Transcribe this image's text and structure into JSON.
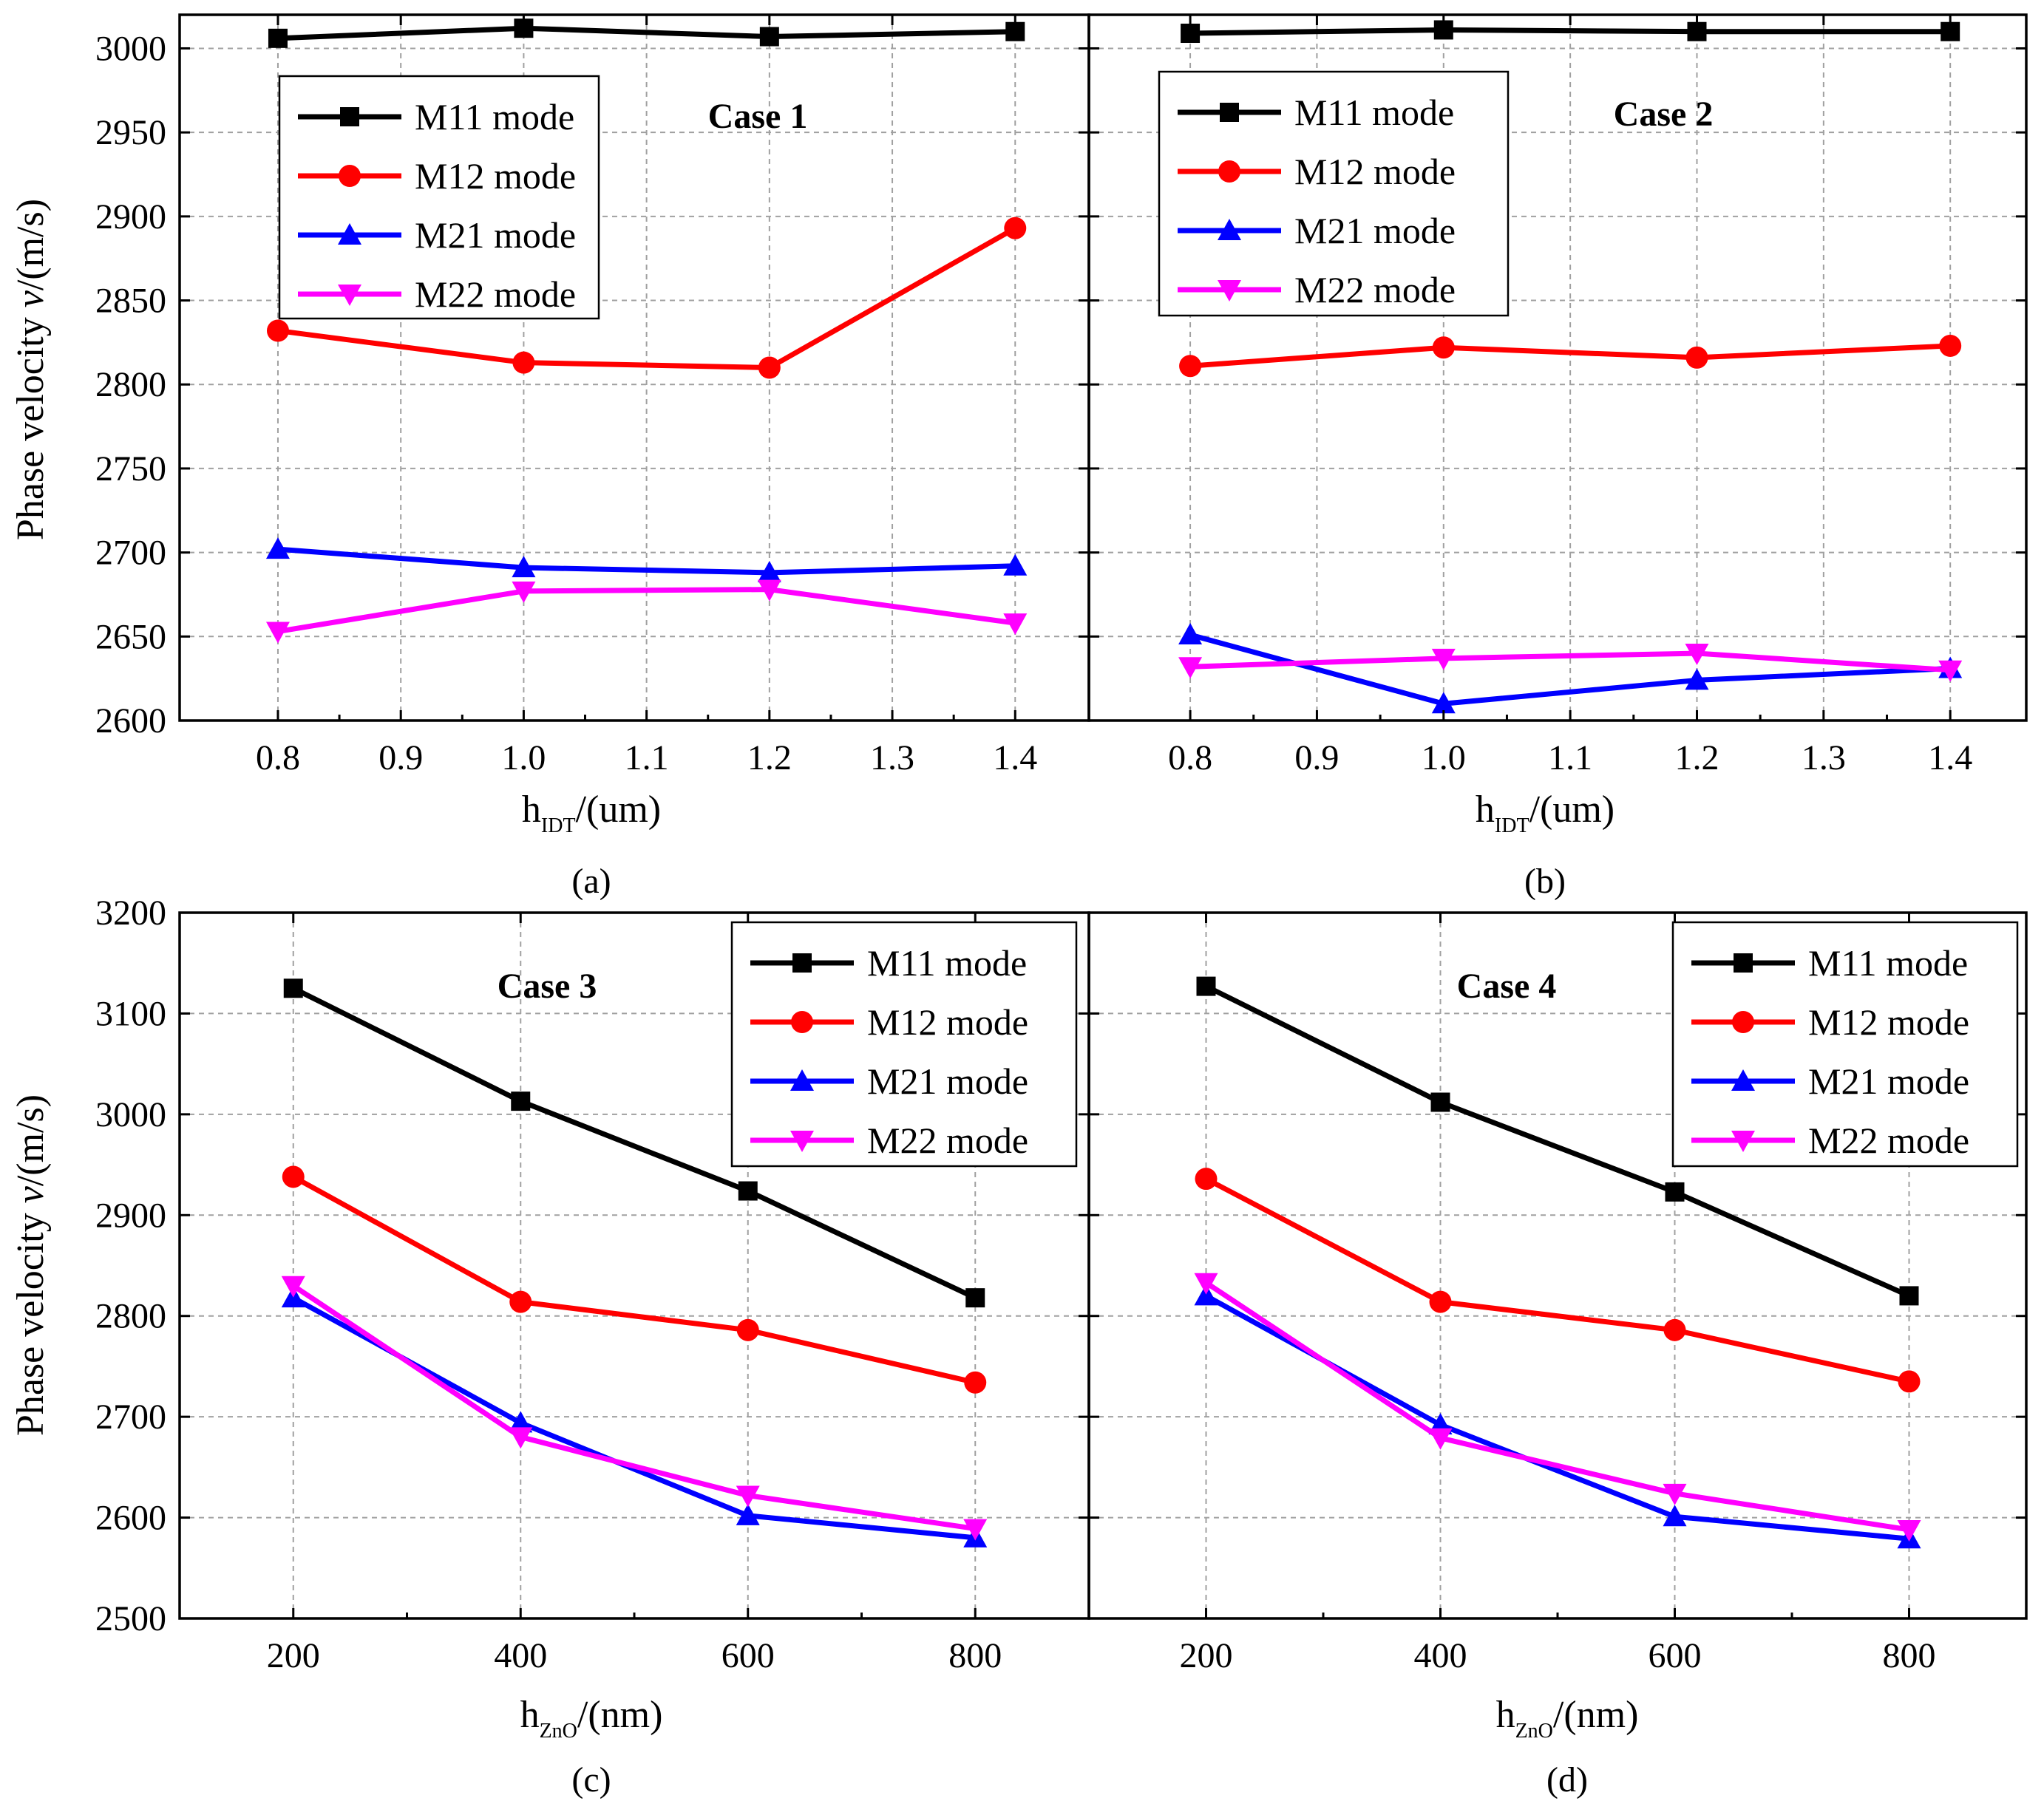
{
  "chart_data": [
    {
      "panel": "(a)",
      "type": "line",
      "case_label": "Case 1",
      "xlabel_main": "h",
      "xlabel_sub": "IDT",
      "xlabel_unit": "/(um)",
      "ylabel_pre": "Phase velocity ",
      "ylabel_var": "v",
      "ylabel_post": "/(m/s)",
      "x": [
        0.8,
        1.0,
        1.2,
        1.4
      ],
      "xlim": [
        0.72,
        1.46
      ],
      "ylim": [
        2600,
        3020
      ],
      "xticks": [
        "0.8",
        "0.9",
        "1.0",
        "1.1",
        "1.2",
        "1.3",
        "1.4"
      ],
      "yticks": [
        "2600",
        "2650",
        "2700",
        "2750",
        "2800",
        "2850",
        "2900",
        "2950",
        "3000"
      ],
      "grid": true,
      "legend_position": "top-left",
      "series": [
        {
          "name": "M11 mode",
          "color": "#000000",
          "marker": "square",
          "values": [
            3006,
            3012,
            3007,
            3010
          ]
        },
        {
          "name": "M12 mode",
          "color": "#ff0000",
          "marker": "circle",
          "values": [
            2832,
            2813,
            2810,
            2893
          ]
        },
        {
          "name": "M21 mode",
          "color": "#0000ff",
          "marker": "triangle-up",
          "values": [
            2702,
            2691,
            2688,
            2692
          ]
        },
        {
          "name": "M22 mode",
          "color": "#ff00ff",
          "marker": "triangle-down",
          "values": [
            2653,
            2677,
            2678,
            2658
          ]
        }
      ]
    },
    {
      "panel": "(b)",
      "type": "line",
      "case_label": "Case 2",
      "xlabel_main": "h",
      "xlabel_sub": "IDT",
      "xlabel_unit": "/(um)",
      "x": [
        0.8,
        1.0,
        1.2,
        1.4
      ],
      "xlim": [
        0.72,
        1.46
      ],
      "ylim": [
        2600,
        3020
      ],
      "xticks": [
        "0.8",
        "0.9",
        "1.0",
        "1.1",
        "1.2",
        "1.3",
        "1.4"
      ],
      "grid": true,
      "legend_position": "top-left",
      "series": [
        {
          "name": "M11 mode",
          "color": "#000000",
          "marker": "square",
          "values": [
            3009,
            3011,
            3010,
            3010
          ]
        },
        {
          "name": "M12 mode",
          "color": "#ff0000",
          "marker": "circle",
          "values": [
            2811,
            2822,
            2816,
            2823
          ]
        },
        {
          "name": "M21 mode",
          "color": "#0000ff",
          "marker": "triangle-up",
          "values": [
            2651,
            2610,
            2624,
            2631
          ]
        },
        {
          "name": "M22 mode",
          "color": "#ff00ff",
          "marker": "triangle-down",
          "values": [
            2632,
            2637,
            2640,
            2630
          ]
        }
      ]
    },
    {
      "panel": "(c)",
      "type": "line",
      "case_label": "Case 3",
      "xlabel_main": "h",
      "xlabel_sub": "ZnO",
      "xlabel_unit": "/(nm)",
      "ylabel_pre": "Phase velocity ",
      "ylabel_var": "v",
      "ylabel_post": "/(m/s)",
      "x": [
        200,
        400,
        600,
        800
      ],
      "xlim": [
        100,
        900
      ],
      "ylim": [
        2500,
        3200
      ],
      "xticks": [
        "200",
        "400",
        "600",
        "800"
      ],
      "yticks": [
        "2500",
        "2600",
        "2700",
        "2800",
        "2900",
        "3000",
        "3100",
        "3200"
      ],
      "grid": true,
      "legend_position": "top-right",
      "series": [
        {
          "name": "M11 mode",
          "color": "#000000",
          "marker": "square",
          "values": [
            3125,
            3013,
            2924,
            2818
          ]
        },
        {
          "name": "M12 mode",
          "color": "#ff0000",
          "marker": "circle",
          "values": [
            2938,
            2814,
            2786,
            2734
          ]
        },
        {
          "name": "M21 mode",
          "color": "#0000ff",
          "marker": "triangle-up",
          "values": [
            2818,
            2694,
            2602,
            2580
          ]
        },
        {
          "name": "M22 mode",
          "color": "#ff00ff",
          "marker": "triangle-down",
          "values": [
            2830,
            2680,
            2622,
            2589
          ]
        }
      ]
    },
    {
      "panel": "(d)",
      "type": "line",
      "case_label": "Case 4",
      "xlabel_main": "h",
      "xlabel_sub": "ZnO",
      "xlabel_unit": "/(nm)",
      "x": [
        200,
        400,
        600,
        800
      ],
      "xlim": [
        100,
        900
      ],
      "ylim": [
        2500,
        3200
      ],
      "xticks": [
        "200",
        "400",
        "600",
        "800"
      ],
      "grid": true,
      "legend_position": "top-right",
      "series": [
        {
          "name": "M11 mode",
          "color": "#000000",
          "marker": "square",
          "values": [
            3127,
            3012,
            2923,
            2820
          ]
        },
        {
          "name": "M12 mode",
          "color": "#ff0000",
          "marker": "circle",
          "values": [
            2936,
            2814,
            2786,
            2735
          ]
        },
        {
          "name": "M21 mode",
          "color": "#0000ff",
          "marker": "triangle-up",
          "values": [
            2820,
            2692,
            2601,
            2579
          ]
        },
        {
          "name": "M22 mode",
          "color": "#ff00ff",
          "marker": "triangle-down",
          "values": [
            2833,
            2679,
            2624,
            2588
          ]
        }
      ]
    }
  ]
}
